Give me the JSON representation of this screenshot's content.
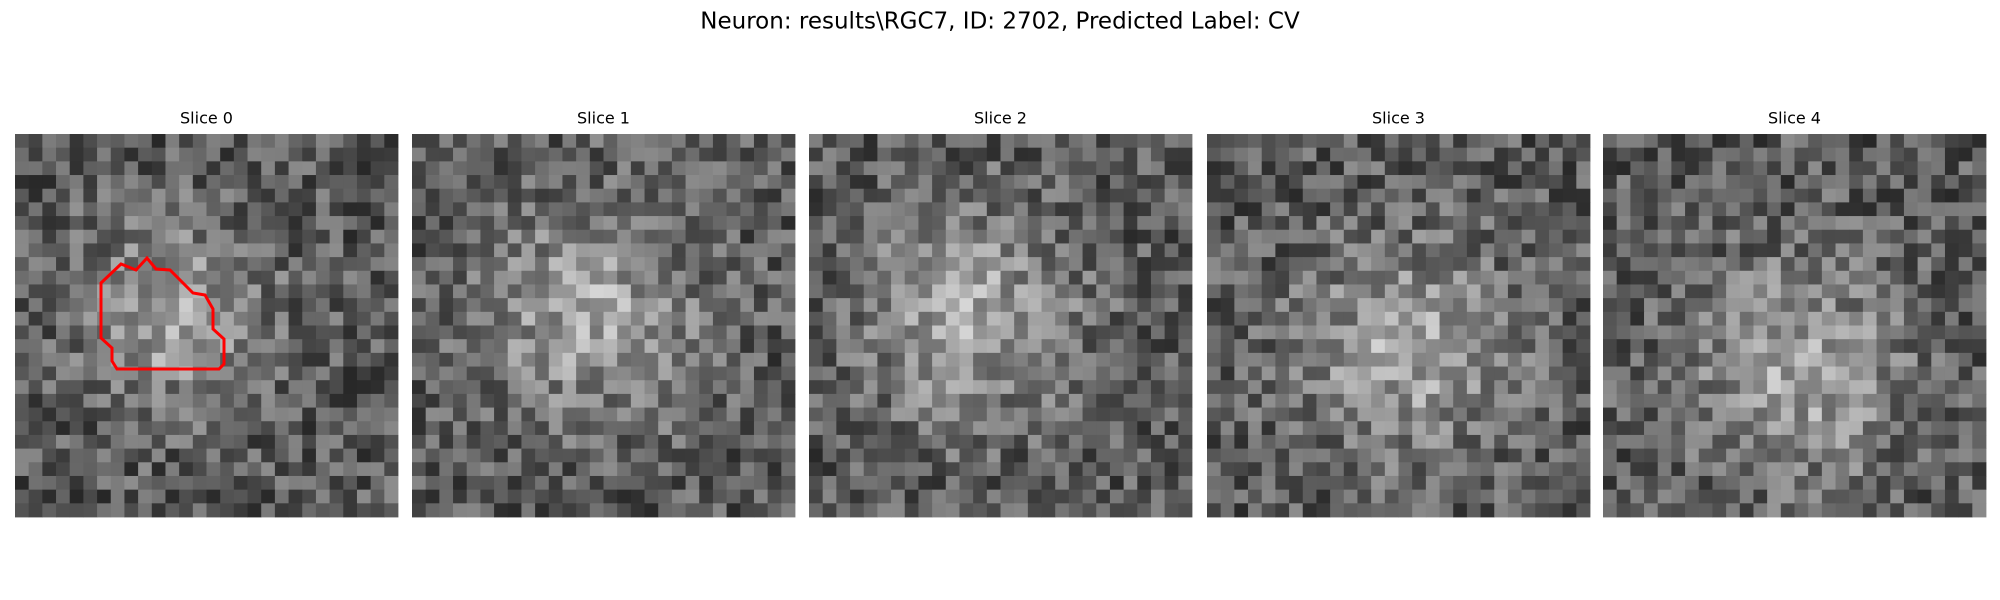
{
  "title": "Neuron: results\\RGC7, ID: 2702, Predicted Label: CV",
  "panels": [
    {
      "title": "Slice 0"
    },
    {
      "title": "Slice 1"
    },
    {
      "title": "Slice 2"
    },
    {
      "title": "Slice 3"
    },
    {
      "title": "Slice 4"
    }
  ]
}
